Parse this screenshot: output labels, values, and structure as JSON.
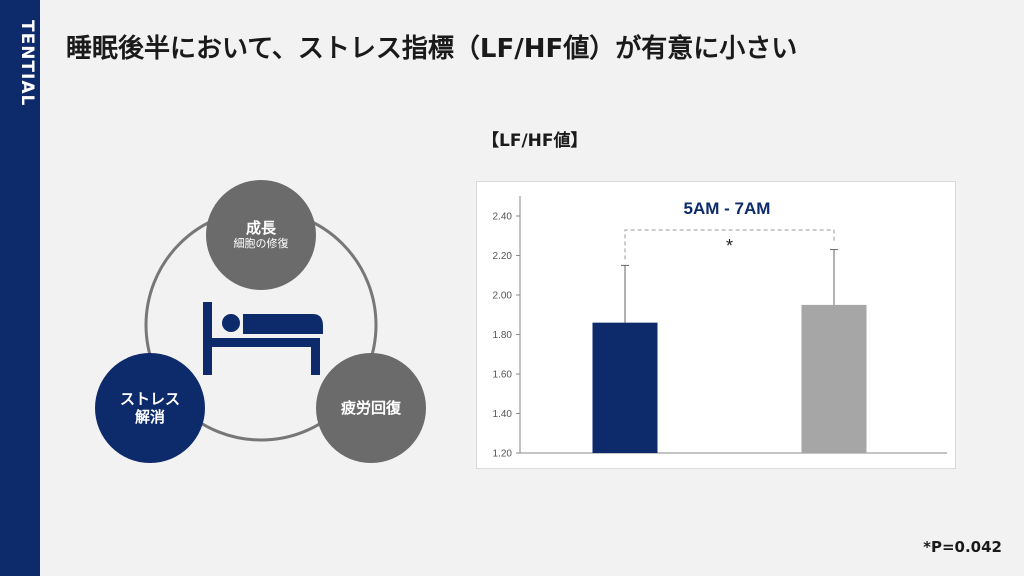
{
  "brand": "TENTIAL",
  "title": "睡眠後半において、ストレス指標（LF/HF値）が有意に小さい",
  "diagram": {
    "top": {
      "main": "成長",
      "sub": "細胞の修復"
    },
    "left": {
      "main": "ストレス",
      "sub": "解消"
    },
    "right": {
      "main": "疲労回復"
    }
  },
  "footnote": "*P=0.042",
  "chart_data": {
    "type": "bar",
    "title": "【LF/HF値】",
    "annotation": "5AM  - 7AM",
    "significance": "*",
    "categories": [
      "",
      ""
    ],
    "values": [
      1.86,
      1.95
    ],
    "error_upper": [
      2.15,
      2.23
    ],
    "colors": [
      "#0d2a6b",
      "#a6a6a6"
    ],
    "ylim": [
      1.2,
      2.4
    ],
    "yticks": [
      "1.20",
      "1.40",
      "1.60",
      "1.80",
      "2.00",
      "2.20",
      "2.40"
    ],
    "grid": false
  }
}
